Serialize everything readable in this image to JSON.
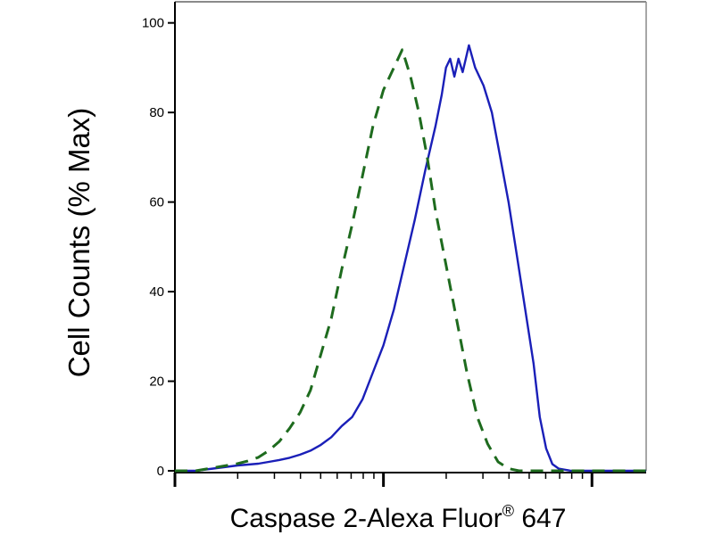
{
  "chart_data": {
    "type": "line",
    "xlabel": "Caspase 2-Alexa Fluor",
    "xlabel_superscript": "®",
    "xlabel_suffix": "647",
    "ylabel": "Cell Counts (% Max)",
    "x_scale": "log",
    "x_decades": 2.26,
    "y_ticks": [
      "0",
      "20",
      "40",
      "60",
      "80",
      "100"
    ],
    "ylim": [
      0,
      100
    ],
    "grid": false,
    "series": [
      {
        "color": "#1a1fb8",
        "line_style": "solid",
        "points": [
          [
            0.0,
            0
          ],
          [
            0.05,
            0
          ],
          [
            0.1,
            0
          ],
          [
            0.15,
            0.3
          ],
          [
            0.2,
            0.6
          ],
          [
            0.25,
            0.9
          ],
          [
            0.3,
            1.2
          ],
          [
            0.35,
            1.4
          ],
          [
            0.4,
            1.6
          ],
          [
            0.45,
            2.0
          ],
          [
            0.5,
            2.4
          ],
          [
            0.55,
            2.9
          ],
          [
            0.6,
            3.6
          ],
          [
            0.65,
            4.5
          ],
          [
            0.7,
            5.8
          ],
          [
            0.75,
            7.5
          ],
          [
            0.8,
            10.0
          ],
          [
            0.85,
            12.0
          ],
          [
            0.9,
            16.0
          ],
          [
            0.95,
            22.0
          ],
          [
            1.0,
            28.0
          ],
          [
            1.05,
            36.0
          ],
          [
            1.1,
            46.0
          ],
          [
            1.15,
            56.0
          ],
          [
            1.2,
            67.0
          ],
          [
            1.25,
            77.0
          ],
          [
            1.28,
            84.0
          ],
          [
            1.3,
            90.0
          ],
          [
            1.32,
            92.0
          ],
          [
            1.34,
            88.0
          ],
          [
            1.36,
            92.0
          ],
          [
            1.38,
            89.0
          ],
          [
            1.41,
            95.0
          ],
          [
            1.44,
            90.0
          ],
          [
            1.48,
            86.0
          ],
          [
            1.52,
            80.0
          ],
          [
            1.56,
            70.0
          ],
          [
            1.6,
            60.0
          ],
          [
            1.64,
            48.0
          ],
          [
            1.68,
            36.0
          ],
          [
            1.72,
            24.0
          ],
          [
            1.75,
            12.0
          ],
          [
            1.78,
            5.0
          ],
          [
            1.81,
            1.5
          ],
          [
            1.84,
            0.5
          ],
          [
            1.9,
            0
          ],
          [
            2.0,
            0
          ],
          [
            2.1,
            0
          ],
          [
            2.26,
            0
          ]
        ]
      },
      {
        "color": "#1e6b1e",
        "line_style": "dashed",
        "points": [
          [
            0.0,
            0
          ],
          [
            0.1,
            0
          ],
          [
            0.15,
            0.4
          ],
          [
            0.2,
            0.8
          ],
          [
            0.25,
            1.2
          ],
          [
            0.3,
            1.6
          ],
          [
            0.35,
            2.2
          ],
          [
            0.4,
            3.0
          ],
          [
            0.45,
            4.5
          ],
          [
            0.5,
            6.5
          ],
          [
            0.55,
            9.5
          ],
          [
            0.6,
            13.0
          ],
          [
            0.65,
            18.0
          ],
          [
            0.7,
            26.0
          ],
          [
            0.75,
            34.0
          ],
          [
            0.8,
            45.0
          ],
          [
            0.85,
            55.0
          ],
          [
            0.9,
            66.0
          ],
          [
            0.95,
            77.0
          ],
          [
            1.0,
            85.0
          ],
          [
            1.05,
            90.0
          ],
          [
            1.09,
            94.0
          ],
          [
            1.13,
            88.0
          ],
          [
            1.17,
            80.0
          ],
          [
            1.21,
            70.0
          ],
          [
            1.25,
            58.0
          ],
          [
            1.3,
            46.0
          ],
          [
            1.35,
            34.0
          ],
          [
            1.4,
            22.0
          ],
          [
            1.45,
            12.0
          ],
          [
            1.5,
            6.0
          ],
          [
            1.55,
            2.0
          ],
          [
            1.6,
            0.5
          ],
          [
            1.65,
            0
          ],
          [
            2.26,
            0
          ]
        ]
      }
    ]
  }
}
